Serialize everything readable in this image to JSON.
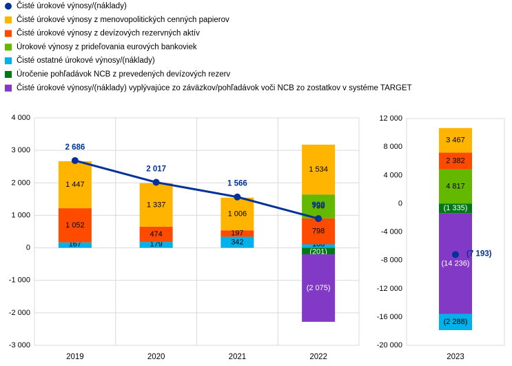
{
  "legend": [
    {
      "label": "Čisté úrokové výnosy/(náklady)",
      "color": "#003299",
      "marker": "dot"
    },
    {
      "label": "Čisté úrokové výnosy z menovopolitických cenných papierov",
      "color": "#FFB400",
      "marker": "square"
    },
    {
      "label": "Čisté úrokové výnosy z devízových rezervných aktív",
      "color": "#FF4B00",
      "marker": "square"
    },
    {
      "label": "Úrokové výnosy z prideľovania eurových bankoviek",
      "color": "#65B800",
      "marker": "square"
    },
    {
      "label": "Čisté ostatné úrokové výnosy/(náklady)",
      "color": "#00B1EA",
      "marker": "square"
    },
    {
      "label": "Úročenie pohľadávok NCB z prevedených devízových rezerv",
      "color": "#007816",
      "marker": "square"
    },
    {
      "label": "Čisté úrokové výnosy/(náklady) vyplývajúce zo záväzkov/pohľadávok voči NCB zo zostatkov v systéme TARGET",
      "color": "#8139C6",
      "marker": "square"
    }
  ],
  "chart_data": [
    {
      "type": "bar",
      "stacked": true,
      "categories": [
        "2019",
        "2020",
        "2021",
        "2022"
      ],
      "ylim": [
        -3000,
        4000
      ],
      "yticks": [
        "-3 000",
        "-2 000",
        "-1 000",
        "0",
        "1 000",
        "2 000",
        "3 000",
        "4 000"
      ],
      "grid": true,
      "series": [
        {
          "key": "other",
          "color": "#00B1EA",
          "values": [
            167,
            179,
            342,
            108
          ],
          "labels": [
            "167",
            "179",
            "342",
            "108"
          ]
        },
        {
          "key": "fx",
          "color": "#FF4B00",
          "values": [
            1052,
            474,
            197,
            798
          ],
          "labels": [
            "1 052",
            "474",
            "197",
            "798"
          ]
        },
        {
          "key": "banknotes",
          "color": "#65B800",
          "values": [
            0,
            0,
            0,
            736
          ],
          "labels": [
            "",
            "",
            "",
            "736"
          ]
        },
        {
          "key": "mpsec",
          "color": "#FFB400",
          "values": [
            1447,
            1337,
            1006,
            1534
          ],
          "labels": [
            "1 447",
            "1 337",
            "1 006",
            "1 534"
          ]
        },
        {
          "key": "ncbfx",
          "color": "#007816",
          "values": [
            0,
            0,
            0,
            -201
          ],
          "labels": [
            "",
            "",
            "",
            "(201)"
          ]
        },
        {
          "key": "target",
          "color": "#8139C6",
          "values": [
            0,
            0,
            0,
            -2075
          ],
          "labels": [
            "",
            "",
            "",
            "(2 075)"
          ]
        }
      ],
      "line": {
        "values": [
          2686,
          2017,
          1566,
          900
        ],
        "labels": [
          "2 686",
          "2 017",
          "1 566",
          "900"
        ],
        "color": "#003299"
      }
    },
    {
      "type": "bar",
      "stacked": true,
      "categories": [
        "2023"
      ],
      "ylim": [
        -20000,
        12000
      ],
      "yticks": [
        "-20 000",
        "-16 000",
        "-12 000",
        "-8 000",
        "-4 000",
        "0",
        "4 000",
        "8 000",
        "12 000"
      ],
      "grid": false,
      "series": [
        {
          "key": "banknotes",
          "color": "#65B800",
          "values": [
            4817
          ],
          "labels": [
            "4 817"
          ]
        },
        {
          "key": "fx",
          "color": "#FF4B00",
          "values": [
            2382
          ],
          "labels": [
            "2 382"
          ]
        },
        {
          "key": "mpsec",
          "color": "#FFB400",
          "values": [
            3467
          ],
          "labels": [
            "3 467"
          ]
        },
        {
          "key": "ncbfx",
          "color": "#007816",
          "values": [
            -1335
          ],
          "labels": [
            "(1 335)"
          ]
        },
        {
          "key": "target",
          "color": "#8139C6",
          "values": [
            -14236
          ],
          "labels": [
            "(14 236)"
          ]
        },
        {
          "key": "other",
          "color": "#00B1EA",
          "values": [
            -2288
          ],
          "labels": [
            "(2 288)"
          ]
        }
      ],
      "line": {
        "values": [
          -7193
        ],
        "labels": [
          "(7 193)"
        ],
        "color": "#003299"
      }
    }
  ]
}
